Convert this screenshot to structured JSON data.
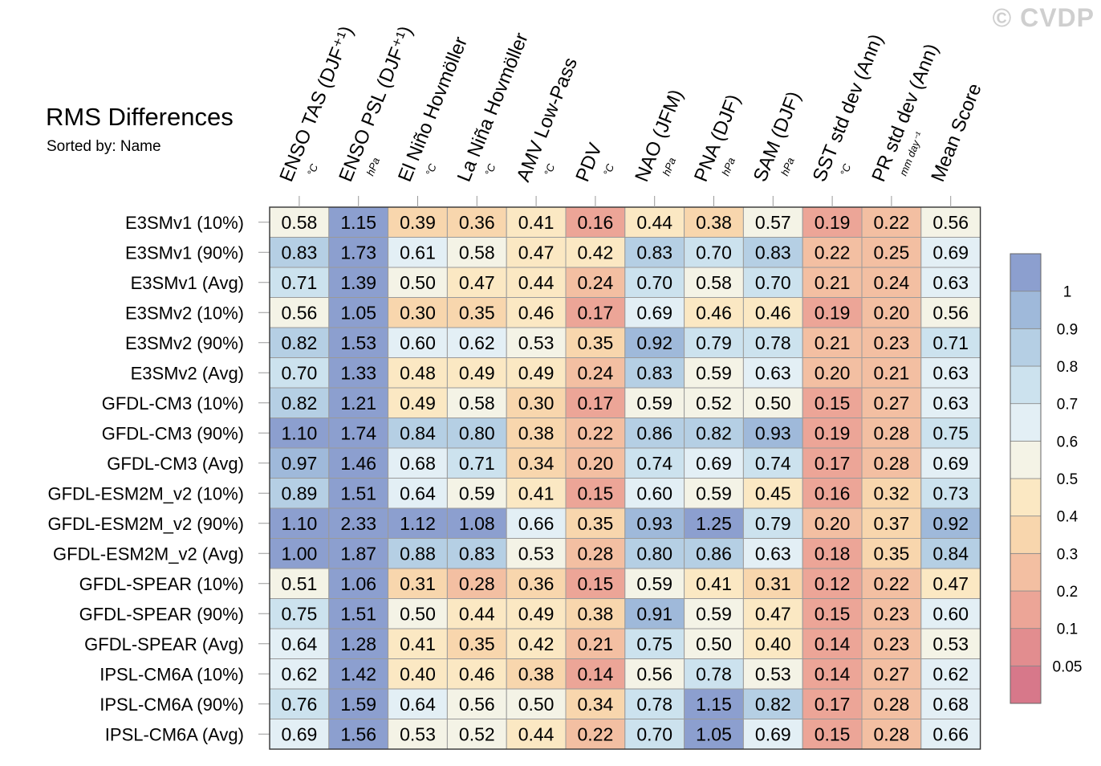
{
  "watermark": "© CVDP",
  "chart_data": {
    "type": "heatmap",
    "title": "RMS Differences",
    "subtitle": "Sorted by: Name",
    "columns": [
      {
        "label": "ENSO TAS (DJF⁺¹)",
        "unit": "°C"
      },
      {
        "label": "ENSO PSL (DJF⁺¹)",
        "unit": "hPa"
      },
      {
        "label": "El Niño Hovmöller",
        "unit": "°C"
      },
      {
        "label": "La Niña Hovmöller",
        "unit": "°C"
      },
      {
        "label": "AMV Low-Pass",
        "unit": "°C"
      },
      {
        "label": "PDV",
        "unit": "°C"
      },
      {
        "label": "NAO (JFM)",
        "unit": "hPa"
      },
      {
        "label": "PNA (DJF)",
        "unit": "hPa"
      },
      {
        "label": "SAM (DJF)",
        "unit": "hPa"
      },
      {
        "label": "SST std dev (Ann)",
        "unit": "°C"
      },
      {
        "label": "PR std dev (Ann)",
        "unit": "mm day⁻¹"
      },
      {
        "label": "Mean Score",
        "unit": ""
      }
    ],
    "rows": [
      {
        "name": "E3SMv1 (10%)",
        "values": [
          0.58,
          1.15,
          0.39,
          0.36,
          0.41,
          0.16,
          0.44,
          0.38,
          0.57,
          0.19,
          0.22,
          0.56
        ]
      },
      {
        "name": "E3SMv1 (90%)",
        "values": [
          0.83,
          1.73,
          0.61,
          0.58,
          0.47,
          0.42,
          0.83,
          0.7,
          0.83,
          0.22,
          0.25,
          0.69
        ]
      },
      {
        "name": "E3SMv1 (Avg)",
        "values": [
          0.71,
          1.39,
          0.5,
          0.47,
          0.44,
          0.24,
          0.7,
          0.58,
          0.7,
          0.21,
          0.24,
          0.63
        ]
      },
      {
        "name": "E3SMv2 (10%)",
        "values": [
          0.56,
          1.05,
          0.3,
          0.35,
          0.46,
          0.17,
          0.69,
          0.46,
          0.46,
          0.19,
          0.2,
          0.56
        ]
      },
      {
        "name": "E3SMv2 (90%)",
        "values": [
          0.82,
          1.53,
          0.6,
          0.62,
          0.53,
          0.35,
          0.92,
          0.79,
          0.78,
          0.21,
          0.23,
          0.71
        ]
      },
      {
        "name": "E3SMv2 (Avg)",
        "values": [
          0.7,
          1.33,
          0.48,
          0.49,
          0.49,
          0.24,
          0.83,
          0.59,
          0.63,
          0.2,
          0.21,
          0.63
        ]
      },
      {
        "name": "GFDL-CM3 (10%)",
        "values": [
          0.82,
          1.21,
          0.49,
          0.58,
          0.3,
          0.17,
          0.59,
          0.52,
          0.5,
          0.15,
          0.27,
          0.63
        ]
      },
      {
        "name": "GFDL-CM3 (90%)",
        "values": [
          1.1,
          1.74,
          0.84,
          0.8,
          0.38,
          0.22,
          0.86,
          0.82,
          0.93,
          0.19,
          0.28,
          0.75
        ]
      },
      {
        "name": "GFDL-CM3 (Avg)",
        "values": [
          0.97,
          1.46,
          0.68,
          0.71,
          0.34,
          0.2,
          0.74,
          0.69,
          0.74,
          0.17,
          0.28,
          0.69
        ]
      },
      {
        "name": "GFDL-ESM2M_v2 (10%)",
        "values": [
          0.89,
          1.51,
          0.64,
          0.59,
          0.41,
          0.15,
          0.6,
          0.59,
          0.45,
          0.16,
          0.32,
          0.73
        ]
      },
      {
        "name": "GFDL-ESM2M_v2 (90%)",
        "values": [
          1.1,
          2.33,
          1.12,
          1.08,
          0.66,
          0.35,
          0.93,
          1.25,
          0.79,
          0.2,
          0.37,
          0.92
        ]
      },
      {
        "name": "GFDL-ESM2M_v2 (Avg)",
        "values": [
          1.0,
          1.87,
          0.88,
          0.83,
          0.53,
          0.28,
          0.8,
          0.86,
          0.63,
          0.18,
          0.35,
          0.84
        ]
      },
      {
        "name": "GFDL-SPEAR (10%)",
        "values": [
          0.51,
          1.06,
          0.31,
          0.28,
          0.36,
          0.15,
          0.59,
          0.41,
          0.31,
          0.12,
          0.22,
          0.47
        ]
      },
      {
        "name": "GFDL-SPEAR (90%)",
        "values": [
          0.75,
          1.51,
          0.5,
          0.44,
          0.49,
          0.38,
          0.91,
          0.59,
          0.47,
          0.15,
          0.23,
          0.6
        ]
      },
      {
        "name": "GFDL-SPEAR (Avg)",
        "values": [
          0.64,
          1.28,
          0.41,
          0.35,
          0.42,
          0.21,
          0.75,
          0.5,
          0.4,
          0.14,
          0.23,
          0.53
        ]
      },
      {
        "name": "IPSL-CM6A (10%)",
        "values": [
          0.62,
          1.42,
          0.4,
          0.46,
          0.38,
          0.14,
          0.56,
          0.78,
          0.53,
          0.14,
          0.27,
          0.62
        ]
      },
      {
        "name": "IPSL-CM6A (90%)",
        "values": [
          0.76,
          1.59,
          0.64,
          0.56,
          0.5,
          0.34,
          0.78,
          1.15,
          0.82,
          0.17,
          0.28,
          0.68
        ]
      },
      {
        "name": "IPSL-CM6A (Avg)",
        "values": [
          0.69,
          1.56,
          0.53,
          0.52,
          0.44,
          0.22,
          0.7,
          1.05,
          0.69,
          0.15,
          0.28,
          0.66
        ]
      }
    ],
    "colorbar": {
      "levels": [
        0.05,
        0.1,
        0.2,
        0.3,
        0.4,
        0.5,
        0.6,
        0.7,
        0.8,
        0.9,
        1
      ],
      "labels": [
        "0.05",
        "0.1",
        "0.2",
        "0.3",
        "0.4",
        "0.5",
        "0.6",
        "0.7",
        "0.8",
        "0.9",
        "1"
      ],
      "colors": [
        "#d7788a",
        "#e28d8f",
        "#eca597",
        "#f3bfa2",
        "#f8d6ad",
        "#fbe8c3",
        "#f4f3e6",
        "#e3eff5",
        "#cce2ee",
        "#b5cfe4",
        "#9fb9da",
        "#8c9fcf"
      ]
    }
  }
}
